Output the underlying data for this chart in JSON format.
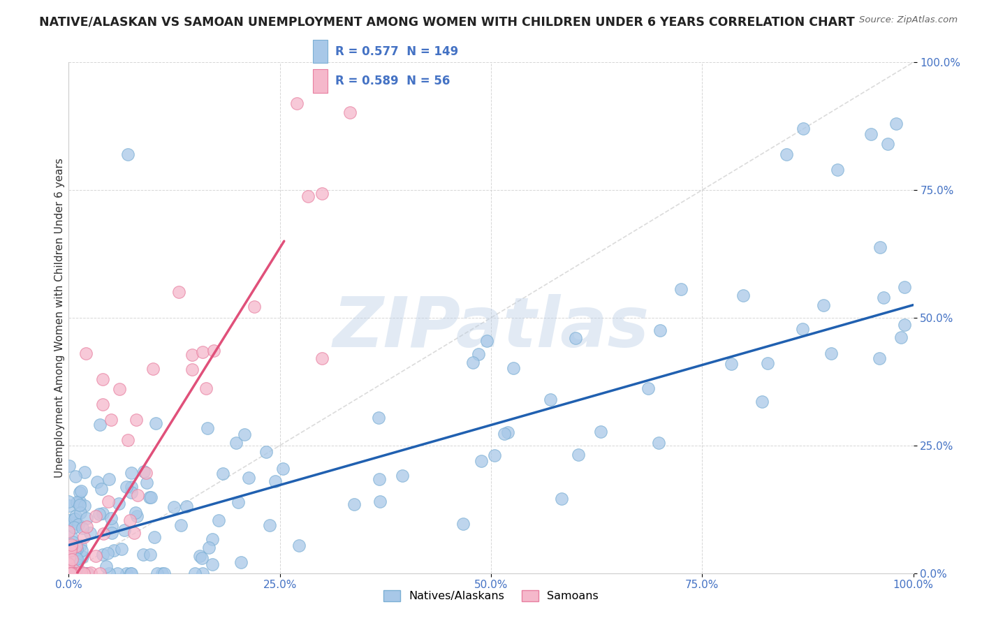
{
  "title": "NATIVE/ALASKAN VS SAMOAN UNEMPLOYMENT AMONG WOMEN WITH CHILDREN UNDER 6 YEARS CORRELATION CHART",
  "source": "Source: ZipAtlas.com",
  "ylabel": "Unemployment Among Women with Children Under 6 years",
  "xlim": [
    0,
    1.0
  ],
  "ylim": [
    0,
    1.0
  ],
  "tick_vals": [
    0.0,
    0.25,
    0.5,
    0.75,
    1.0
  ],
  "tick_labels": [
    "0.0%",
    "25.0%",
    "50.0%",
    "75.0%",
    "100.0%"
  ],
  "blue_color": "#a8c8e8",
  "blue_edge_color": "#7bafd4",
  "pink_color": "#f5b8cb",
  "pink_edge_color": "#e87fa0",
  "blue_line_color": "#2060b0",
  "pink_line_color": "#e0507a",
  "R_blue": 0.577,
  "N_blue": 149,
  "R_pink": 0.589,
  "N_pink": 56,
  "legend_label_blue": "Natives/Alaskans",
  "legend_label_pink": "Samoans",
  "watermark": "ZIPatlas",
  "blue_trend_x": [
    0.0,
    1.0
  ],
  "blue_trend_y": [
    0.055,
    0.525
  ],
  "pink_trend_x": [
    0.01,
    0.255
  ],
  "pink_trend_y": [
    0.0,
    0.65
  ],
  "ref_line_x": [
    0.0,
    1.0
  ],
  "ref_line_y": [
    0.0,
    1.0
  ],
  "background_color": "#ffffff",
  "title_fontsize": 12.5,
  "axis_label_fontsize": 11,
  "tick_fontsize": 11,
  "ytick_color": "#4472c4",
  "xtick_color": "#4472c4"
}
